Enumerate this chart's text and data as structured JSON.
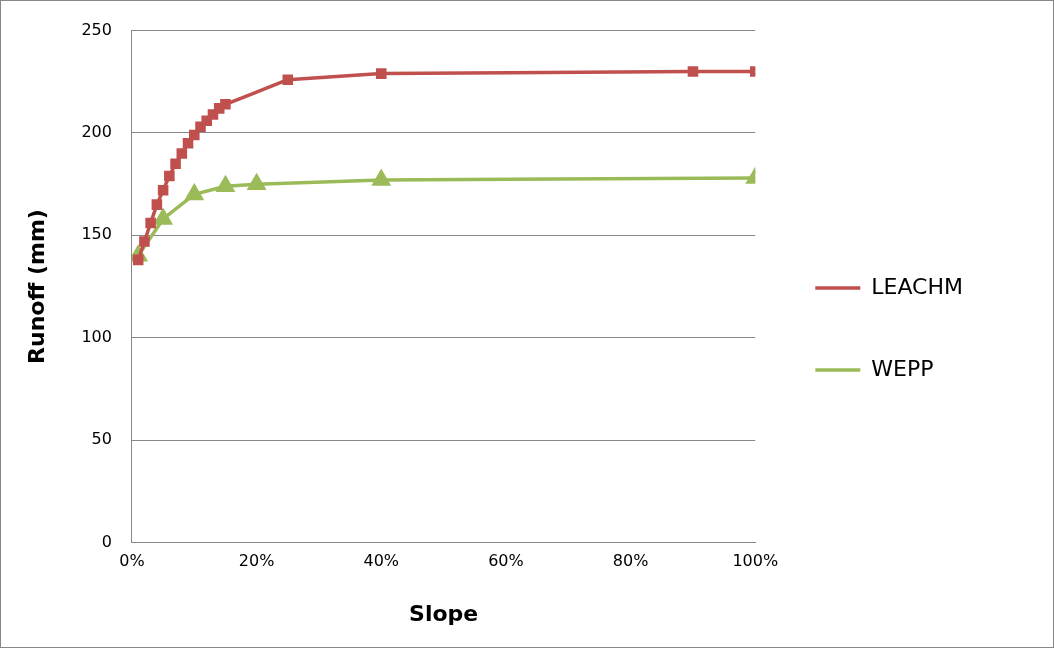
{
  "chart_data": {
    "type": "line",
    "xlabel": "Slope",
    "ylabel": "Runoff (mm)",
    "xlim": [
      0,
      100
    ],
    "xticks": [
      {
        "value": 0,
        "label": "0%"
      },
      {
        "value": 20,
        "label": "20%"
      },
      {
        "value": 40,
        "label": "40%"
      },
      {
        "value": 60,
        "label": "60%"
      },
      {
        "value": 80,
        "label": "80%"
      },
      {
        "value": 100,
        "label": "100%"
      }
    ],
    "ylim": [
      0,
      250
    ],
    "yticks": [
      0,
      50,
      100,
      150,
      200,
      250
    ],
    "grid": "y",
    "legend": "right",
    "series": [
      {
        "name": "LEACHM",
        "color": "#c0504d",
        "marker": "square",
        "x": [
          1,
          2,
          3,
          4,
          5,
          6,
          7,
          8,
          9,
          10,
          11,
          12,
          13,
          14,
          15,
          25,
          40,
          90,
          100
        ],
        "values": [
          138,
          147,
          156,
          165,
          172,
          179,
          185,
          190,
          195,
          199,
          203,
          206,
          209,
          212,
          214,
          226,
          229,
          230,
          230
        ]
      },
      {
        "name": "WEPP",
        "color": "#9bbb59",
        "marker": "triangle",
        "x": [
          1,
          5,
          10,
          15,
          20,
          40,
          100
        ],
        "values": [
          140,
          158,
          170,
          174,
          175,
          177,
          178
        ]
      }
    ]
  }
}
